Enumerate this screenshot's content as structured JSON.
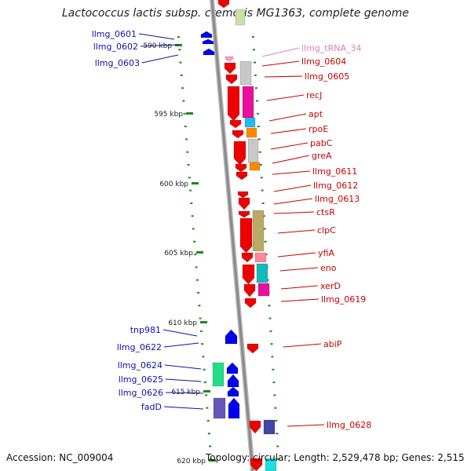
{
  "title": "Lactococcus lactis subsp. cremoris MG1363, complete genome",
  "accession": "Accession: NC_009004",
  "topology": "Topology: circular; Length: 2,529,478 bp; Genes: 2,515",
  "colors": {
    "ticks": "#1a8a1a",
    "backbone": "#8a8a8a",
    "left_label": "#1010b0",
    "right_label": "#cc0000",
    "trna_label": "#e080c0",
    "red_gene": "#ee0000",
    "blue_gene": "#0000ee"
  },
  "kbp_ticks": [
    {
      "label": "590 kbp"
    },
    {
      "label": "595 kbp"
    },
    {
      "label": "600 kbp"
    },
    {
      "label": "605 kbp"
    },
    {
      "label": "610 kbp"
    },
    {
      "label": "615 kbp"
    },
    {
      "label": "620 kbp"
    }
  ],
  "left_labels": [
    {
      "text": "llmg_0601"
    },
    {
      "text": "llmg_0602"
    },
    {
      "text": "llmg_0603"
    },
    {
      "text": "tnp981"
    },
    {
      "text": "llmg_0622"
    },
    {
      "text": "llmg_0624"
    },
    {
      "text": "llmg_0625"
    },
    {
      "text": "llmg_0626"
    },
    {
      "text": "fadD"
    }
  ],
  "right_labels": [
    {
      "text": "llmg_tRNA_34",
      "kind": "trna"
    },
    {
      "text": "llmg_0604"
    },
    {
      "text": "llmg_0605"
    },
    {
      "text": "recJ"
    },
    {
      "text": "apt"
    },
    {
      "text": "rpoE"
    },
    {
      "text": "pabC"
    },
    {
      "text": "greA"
    },
    {
      "text": "llmg_0611"
    },
    {
      "text": "llmg_0612"
    },
    {
      "text": "llmg_0613"
    },
    {
      "text": "ctsR"
    },
    {
      "text": "clpC"
    },
    {
      "text": "yfiA"
    },
    {
      "text": "eno"
    },
    {
      "text": "xerD"
    },
    {
      "text": "llmg_0619"
    },
    {
      "text": "abiP"
    },
    {
      "text": "llmg_0628"
    }
  ]
}
